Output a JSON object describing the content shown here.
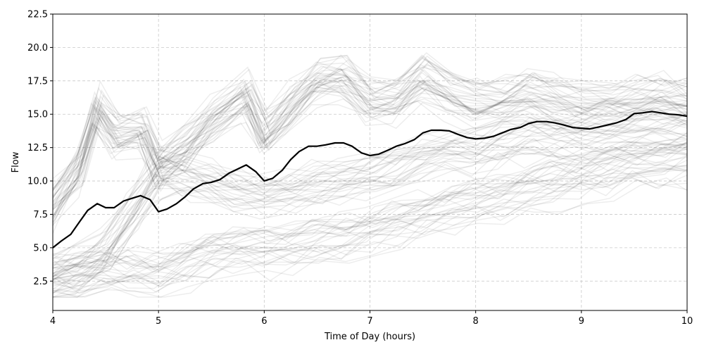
{
  "chart_data": {
    "type": "line",
    "title": "",
    "xlabel": "Time of Day (hours)",
    "ylabel": "Flow",
    "xlim": [
      4,
      10
    ],
    "ylim": [
      0.3,
      22.5
    ],
    "xticks": [
      4,
      5,
      6,
      7,
      8,
      9,
      10
    ],
    "yticks": [
      2.5,
      5.0,
      7.5,
      10.0,
      12.5,
      15.0,
      17.5,
      20.0,
      22.5
    ],
    "grid": true,
    "background_lines": {
      "description_count": 100,
      "color": "#000000",
      "opacity": 0.07,
      "groups": [
        {
          "name_hidden": "high",
          "x": [
            4,
            4.25,
            4.42,
            4.6,
            4.85,
            5,
            5.25,
            5.5,
            5.83,
            6,
            6.25,
            6.5,
            6.75,
            7,
            7.25,
            7.5,
            7.75,
            8,
            8.25,
            8.5,
            8.75,
            9,
            9.25,
            9.5,
            9.75,
            10
          ],
          "values": [
            8.2,
            11.0,
            15.5,
            13.5,
            13.8,
            11.0,
            12.5,
            14.5,
            16.5,
            13.5,
            15.5,
            17.5,
            17.8,
            16.0,
            16.2,
            17.8,
            16.6,
            15.8,
            16.0,
            16.8,
            16.2,
            15.8,
            16.0,
            16.2,
            16.4,
            16.0
          ]
        },
        {
          "name_hidden": "mid",
          "x": [
            4,
            4.25,
            4.5,
            4.75,
            5,
            5.25,
            5.5,
            5.75,
            6,
            6.25,
            6.5,
            6.75,
            7,
            7.25,
            7.5,
            7.75,
            8,
            8.25,
            8.5,
            8.75,
            9,
            9.25,
            9.5,
            9.75,
            10
          ],
          "values": [
            2.8,
            3.3,
            4.5,
            7.5,
            10.5,
            10.2,
            9.8,
            9.2,
            9.0,
            9.2,
            9.6,
            10.0,
            10.5,
            11.0,
            11.8,
            12.2,
            12.0,
            12.8,
            13.2,
            13.0,
            13.0,
            13.3,
            13.6,
            13.8,
            13.6
          ]
        },
        {
          "name_hidden": "low",
          "x": [
            4,
            4.25,
            4.5,
            4.75,
            5,
            5.25,
            5.5,
            5.75,
            6,
            6.25,
            6.5,
            6.75,
            7,
            7.25,
            7.5,
            7.75,
            8,
            8.25,
            8.5,
            8.75,
            9,
            9.25,
            9.5,
            9.75,
            10
          ],
          "values": [
            2.4,
            2.6,
            2.8,
            3.0,
            3.0,
            3.6,
            4.2,
            4.5,
            4.5,
            4.8,
            5.2,
            5.6,
            6.0,
            6.6,
            7.2,
            7.8,
            8.2,
            8.6,
            9.2,
            9.6,
            10.0,
            10.4,
            10.8,
            11.0,
            11.2
          ]
        }
      ]
    },
    "series": [
      {
        "color": "#000000",
        "x": [
          4.0,
          4.08,
          4.17,
          4.25,
          4.33,
          4.42,
          4.5,
          4.58,
          4.67,
          4.75,
          4.83,
          4.92,
          5.0,
          5.08,
          5.17,
          5.25,
          5.33,
          5.42,
          5.5,
          5.58,
          5.67,
          5.75,
          5.83,
          5.92,
          6.0,
          6.08,
          6.17,
          6.25,
          6.33,
          6.42,
          6.5,
          6.58,
          6.67,
          6.75,
          6.83,
          6.92,
          7.0,
          7.08,
          7.17,
          7.25,
          7.33,
          7.42,
          7.5,
          7.58,
          7.67,
          7.75,
          7.83,
          7.92,
          8.0,
          8.08,
          8.17,
          8.25,
          8.33,
          8.42,
          8.5,
          8.58,
          8.67,
          8.75,
          8.83,
          8.92,
          9.0,
          9.08,
          9.17,
          9.25,
          9.33,
          9.42,
          9.5,
          9.58,
          9.67,
          9.75,
          9.83,
          9.92,
          10.0
        ],
        "values": [
          5.0,
          5.5,
          6.0,
          6.9,
          7.8,
          8.3,
          8.0,
          8.0,
          8.5,
          8.7,
          8.9,
          8.6,
          7.7,
          7.9,
          8.3,
          8.8,
          9.4,
          9.8,
          9.9,
          10.1,
          10.6,
          10.9,
          11.2,
          10.7,
          10.0,
          10.2,
          10.8,
          11.6,
          12.2,
          12.6,
          12.6,
          12.7,
          12.85,
          12.85,
          12.6,
          12.1,
          11.9,
          12.0,
          12.3,
          12.6,
          12.8,
          13.1,
          13.6,
          13.8,
          13.8,
          13.75,
          13.5,
          13.25,
          13.15,
          13.2,
          13.35,
          13.6,
          13.85,
          14.0,
          14.3,
          14.45,
          14.45,
          14.35,
          14.2,
          14.0,
          13.95,
          13.9,
          14.05,
          14.2,
          14.35,
          14.6,
          15.05,
          15.1,
          15.2,
          15.1,
          15.0,
          14.95,
          14.85
        ]
      }
    ]
  }
}
